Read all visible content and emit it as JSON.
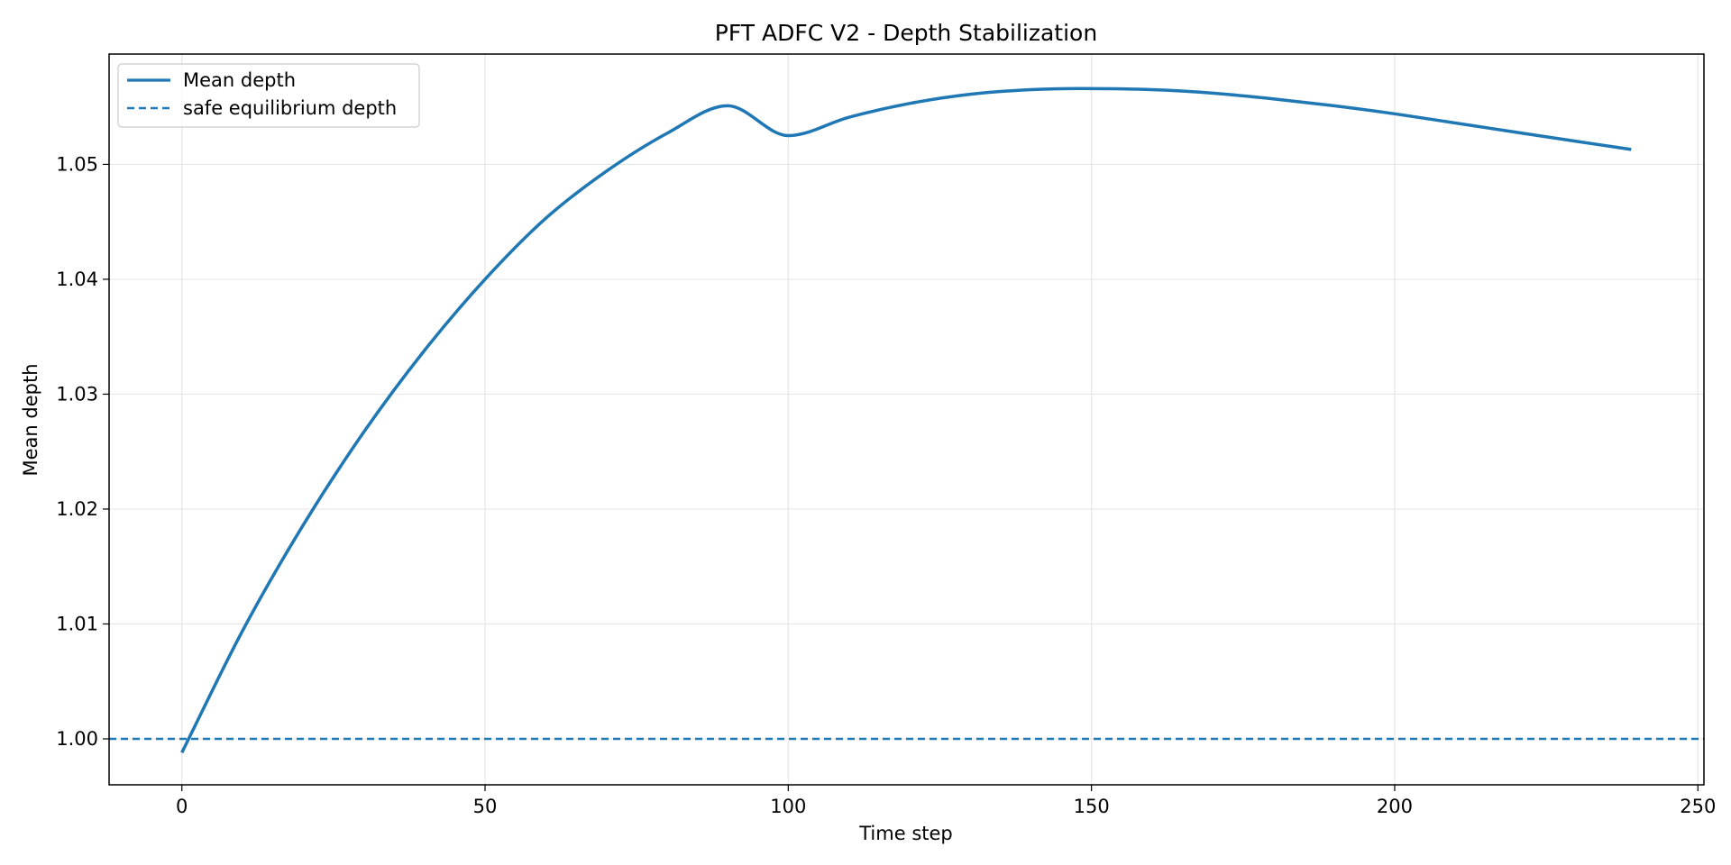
{
  "chart_data": {
    "type": "line",
    "title": "PFT ADFC V2 - Depth Stabilization",
    "xlabel": "Time step",
    "ylabel": "Mean depth",
    "xlim": [
      -12,
      251
    ],
    "ylim": [
      0.996,
      1.0596
    ],
    "xticks": [
      0,
      50,
      100,
      150,
      200,
      250
    ],
    "xtick_labels": [
      "0",
      "50",
      "100",
      "150",
      "200",
      "250"
    ],
    "yticks": [
      1.0,
      1.01,
      1.02,
      1.03,
      1.04,
      1.05
    ],
    "ytick_labels": [
      "1.00",
      "1.01",
      "1.02",
      "1.03",
      "1.04",
      "1.05"
    ],
    "grid": true,
    "legend_position": "top-left",
    "series": [
      {
        "name": "Mean depth",
        "color": "#1f77b4",
        "style": "solid",
        "x": [
          0,
          10,
          20,
          30,
          40,
          50,
          60,
          70,
          80,
          90,
          100,
          110,
          120,
          130,
          140,
          148,
          160,
          170,
          180,
          190,
          200,
          210,
          220,
          230,
          239
        ],
        "y": [
          0.9988,
          1.0094,
          1.0186,
          1.0267,
          1.0338,
          1.04,
          1.0453,
          1.0494,
          1.0527,
          1.0551,
          1.0525,
          1.0541,
          1.0553,
          1.0561,
          1.0565,
          1.0566,
          1.0565,
          1.0562,
          1.0557,
          1.0551,
          1.0544,
          1.0536,
          1.0528,
          1.052,
          1.0513
        ]
      }
    ],
    "reference_lines": [
      {
        "name": "safe equilibrium depth",
        "y": 1.0,
        "color": "#1f77b4",
        "style": "dashed"
      }
    ]
  }
}
